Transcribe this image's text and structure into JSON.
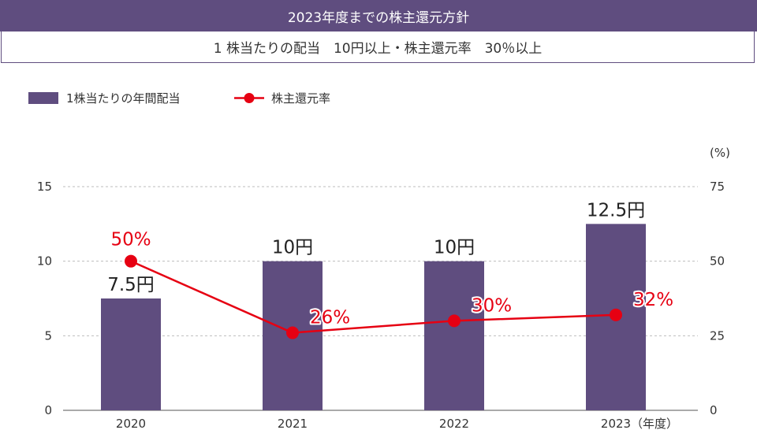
{
  "header": {
    "title": "2023年度までの株主還元方針",
    "policy": "1 株当たりの配当　10円以上・株主還元率　30％以上"
  },
  "colors": {
    "header_bg": "#5f4d7f",
    "bar": "#5f4d7f",
    "line": "#e60012",
    "grid": "#bdbdbd",
    "axis_text": "#333333"
  },
  "chart_data": {
    "type": "bar",
    "categories": [
      "2020",
      "2021",
      "2022",
      "2023"
    ],
    "x_unit_label": "（年度）",
    "series": [
      {
        "name": "1株当たりの年間配当",
        "type": "bar",
        "axis": "left",
        "values": [
          7.5,
          10,
          10,
          12.5
        ],
        "labels": [
          "7.5円",
          "10円",
          "10円",
          "12.5円"
        ]
      },
      {
        "name": "株主還元率",
        "type": "line",
        "axis": "right",
        "values": [
          50,
          26,
          30,
          32
        ],
        "labels": [
          "50%",
          "26%",
          "30%",
          "32%"
        ]
      }
    ],
    "y_left": {
      "min": 0,
      "max": 15,
      "ticks": [
        0,
        5,
        10,
        15
      ]
    },
    "y_right": {
      "min": 0,
      "max": 75,
      "ticks": [
        0,
        25,
        50,
        75
      ],
      "unit": "(%)"
    },
    "grid": true,
    "legend_position": "top-left"
  }
}
